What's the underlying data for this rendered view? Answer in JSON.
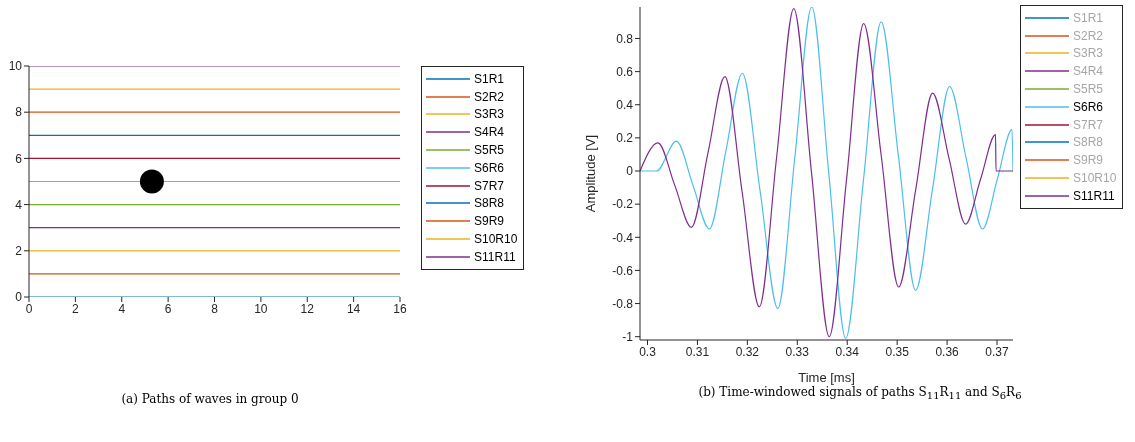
{
  "chart_data": [
    {
      "type": "line",
      "title": "(a) Paths of waves in group 0",
      "xlim": [
        0,
        16
      ],
      "xticks": [
        0,
        2,
        4,
        6,
        8,
        10,
        12,
        14,
        16
      ],
      "ylim": [
        0,
        10
      ],
      "yticks": [
        0,
        2,
        4,
        6,
        8,
        10
      ],
      "grid": false,
      "legend": "right",
      "series": [
        {
          "name": "S1R1",
          "color": "#0072bd",
          "x": [
            0,
            16
          ],
          "values": [
            0,
            0
          ]
        },
        {
          "name": "S2R2",
          "color": "#d95319",
          "x": [
            0,
            16
          ],
          "values": [
            1,
            1
          ]
        },
        {
          "name": "S3R3",
          "color": "#edb120",
          "x": [
            0,
            16
          ],
          "values": [
            2,
            2
          ]
        },
        {
          "name": "S4R4",
          "color": "#7e2f8e",
          "x": [
            0,
            16
          ],
          "values": [
            3,
            3
          ]
        },
        {
          "name": "S5R5",
          "color": "#77ac30",
          "x": [
            0,
            16
          ],
          "values": [
            4,
            4
          ]
        },
        {
          "name": "S6R6",
          "color": "#4dbeee",
          "x": [
            0,
            16
          ],
          "values": [
            5,
            5
          ]
        },
        {
          "name": "S7R7",
          "color": "#a2142f",
          "x": [
            0,
            16
          ],
          "values": [
            6,
            6
          ]
        },
        {
          "name": "S8R8",
          "color": "#0072bd",
          "x": [
            0,
            16
          ],
          "values": [
            7,
            7
          ]
        },
        {
          "name": "S9R9",
          "color": "#d95319",
          "x": [
            0,
            16
          ],
          "values": [
            8,
            8
          ]
        },
        {
          "name": "S10R10",
          "color": "#edb120",
          "x": [
            0,
            16
          ],
          "values": [
            9,
            9
          ]
        },
        {
          "name": "S11R11",
          "color": "#7e2f8e",
          "x": [
            0,
            16
          ],
          "values": [
            10,
            10
          ]
        },
        {
          "type": "scatter",
          "color": "#000000",
          "marker": "circle",
          "x": [
            5.3
          ],
          "values": [
            5
          ]
        }
      ]
    },
    {
      "type": "line",
      "title": "(b) Time-windowed signals of paths S$_{11}$R$_{11}$ and S$_{6}$R$_{6}$",
      "xlabel": "Time [ms]",
      "ylabel": "Amplitude [V]",
      "xlim": [
        0.2985,
        0.3732
      ],
      "xticks": [
        0.3,
        0.31,
        0.32,
        0.33,
        0.34,
        0.35,
        0.36,
        0.37
      ],
      "ylim": [
        -1.02,
        0.99
      ],
      "yticks": [
        -1,
        -0.8,
        -0.6,
        -0.4,
        -0.2,
        0,
        0.2,
        0.4,
        0.6,
        0.8
      ],
      "grid": false,
      "legend": "right",
      "series": [
        {
          "name": "S1R1",
          "color": "#0072bd"
        },
        {
          "name": "S2R2",
          "color": "#d95319"
        },
        {
          "name": "S3R3",
          "color": "#edb120"
        },
        {
          "name": "S4R4",
          "color": "#7e2f8e"
        },
        {
          "name": "S5R5",
          "color": "#77ac30"
        },
        {
          "name": "S6R6",
          "color": "#4dbeee",
          "x": [
            0.2985,
            0.3018,
            0.3058,
            0.3091,
            0.3124,
            0.3157,
            0.319,
            0.32255,
            0.3261,
            0.3295,
            0.3329,
            0.3363,
            0.3397,
            0.34325,
            0.3468,
            0.35025,
            0.3537,
            0.3571,
            0.3605,
            0.3638,
            0.3671,
            0.37005,
            0.373,
            0.3732
          ],
          "values": [
            0,
            0,
            0.18,
            -0.085,
            -0.35,
            0.12,
            0.59,
            -0.12,
            -0.83,
            0.08,
            0.99,
            -0.01,
            -1.01,
            -0.055,
            0.9,
            0.09,
            -0.72,
            -0.105,
            0.51,
            0.08,
            -0.35,
            -0.05,
            0.25,
            0
          ]
        },
        {
          "name": "S7R7",
          "color": "#a2142f"
        },
        {
          "name": "S8R8",
          "color": "#0072bd"
        },
        {
          "name": "S9R9",
          "color": "#d95319"
        },
        {
          "name": "S10R10",
          "color": "#edb120"
        },
        {
          "name": "S11R11",
          "color": "#7e2f8e",
          "x": [
            0.2985,
            0.3021,
            0.30545,
            0.3088,
            0.31215,
            0.3155,
            0.31895,
            0.3224,
            0.32585,
            0.3293,
            0.33285,
            0.3364,
            0.33985,
            0.3433,
            0.3468,
            0.3503,
            0.3537,
            0.3571,
            0.3604,
            0.3637,
            0.3667,
            0.3697,
            0.3698,
            0.3732
          ],
          "values": [
            0,
            0.17,
            -0.085,
            -0.34,
            0.115,
            0.57,
            -0.125,
            -0.82,
            0.08,
            0.98,
            -0.01,
            -1.0,
            -0.055,
            0.89,
            0.095,
            -0.7,
            -0.115,
            0.47,
            0.075,
            -0.32,
            -0.05,
            0.22,
            0,
            0
          ]
        }
      ]
    }
  ]
}
